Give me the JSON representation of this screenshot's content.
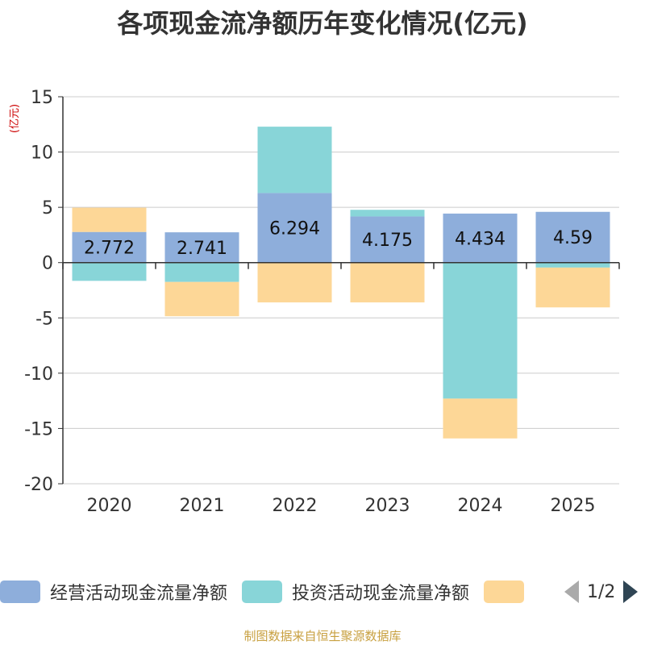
{
  "chart_data": {
    "type": "bar",
    "stacked": true,
    "title": "各项现金流净额历年变化情况(亿元)",
    "unit": "(亿元)",
    "categories": [
      "2020",
      "2021",
      "2022",
      "2023",
      "2024",
      "2025"
    ],
    "ylim": [
      -20,
      15
    ],
    "yticks": [
      15,
      10,
      5,
      0,
      -5,
      -10,
      -15,
      -20
    ],
    "ytick_labels": [
      "15",
      "10",
      "5",
      "0",
      "-5",
      "-10",
      "-15",
      "-20"
    ],
    "series": [
      {
        "name": "经营活动现金流量净额",
        "color": "#8eaedb",
        "values": [
          2.772,
          2.741,
          6.294,
          4.175,
          4.434,
          4.59
        ],
        "labels": [
          "2.772",
          "2.741",
          "6.294",
          "4.175",
          "4.434",
          "4.59"
        ]
      },
      {
        "name": "投资活动现金流量净额",
        "color": "#88d5d8",
        "values": [
          -1.65,
          -1.75,
          6.0,
          0.6,
          -12.3,
          -0.45
        ]
      },
      {
        "name": "",
        "color": "#fdd797",
        "values": [
          2.2,
          -3.1,
          -3.6,
          -3.6,
          -3.6,
          -3.6
        ]
      }
    ],
    "legend": {
      "position": "bottom",
      "page": "1/2"
    }
  },
  "source": "制图数据来自恒生聚源数据库"
}
